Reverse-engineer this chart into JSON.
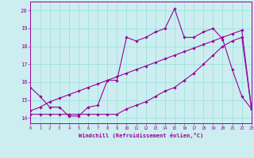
{
  "xlabel": "Windchill (Refroidissement éolien,°C)",
  "bg_color": "#cceef0",
  "grid_color": "#99dddd",
  "line_color": "#990099",
  "ylim": [
    13.7,
    20.5
  ],
  "xlim": [
    0,
    23
  ],
  "yticks": [
    14,
    15,
    16,
    17,
    18,
    19,
    20
  ],
  "xticks": [
    0,
    1,
    2,
    3,
    4,
    5,
    6,
    7,
    8,
    9,
    10,
    11,
    12,
    13,
    14,
    15,
    16,
    17,
    18,
    19,
    20,
    21,
    22,
    23
  ],
  "series1_x": [
    0,
    1,
    2,
    3,
    4,
    5,
    6,
    7,
    8,
    9,
    10,
    11,
    12,
    13,
    14,
    15,
    16,
    17,
    18,
    19,
    20,
    21,
    22,
    23
  ],
  "series1_y": [
    15.7,
    15.2,
    14.6,
    14.6,
    14.1,
    14.1,
    14.6,
    14.7,
    16.1,
    16.1,
    18.5,
    18.3,
    18.5,
    18.8,
    19.0,
    20.1,
    18.5,
    18.5,
    18.8,
    19.0,
    18.4,
    16.7,
    15.2,
    14.5
  ],
  "series2_x": [
    0,
    1,
    2,
    3,
    4,
    5,
    6,
    7,
    8,
    9,
    10,
    11,
    12,
    13,
    14,
    15,
    16,
    17,
    18,
    19,
    20,
    21,
    22,
    23
  ],
  "series2_y": [
    14.2,
    14.2,
    14.2,
    14.2,
    14.2,
    14.2,
    14.2,
    14.2,
    14.2,
    14.2,
    14.5,
    14.7,
    14.9,
    15.2,
    15.5,
    15.7,
    16.1,
    16.5,
    17.0,
    17.5,
    18.0,
    18.3,
    18.5,
    14.5
  ],
  "series3_x": [
    0,
    1,
    2,
    3,
    4,
    5,
    6,
    7,
    8,
    9,
    10,
    11,
    12,
    13,
    14,
    15,
    16,
    17,
    18,
    19,
    20,
    21,
    22,
    23
  ],
  "series3_y": [
    14.4,
    14.6,
    14.9,
    15.1,
    15.3,
    15.5,
    15.7,
    15.9,
    16.1,
    16.3,
    16.5,
    16.7,
    16.9,
    17.1,
    17.3,
    17.5,
    17.7,
    17.9,
    18.1,
    18.3,
    18.5,
    18.7,
    18.9,
    14.5
  ]
}
